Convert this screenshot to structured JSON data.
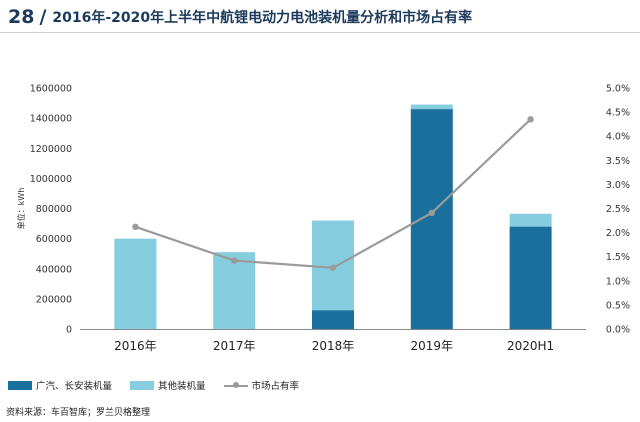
{
  "header": {
    "number": "28",
    "slash": "/",
    "title": "2016年-2020年上半年中航锂电动力电池装机量分析和市场占有率"
  },
  "chart_data": {
    "type": "bar",
    "stacked": true,
    "categories": [
      "2016年",
      "2017年",
      "2018年",
      "2019年",
      "2020H1"
    ],
    "ylabel": "单位：kWh",
    "ylim": [
      0,
      1600000
    ],
    "yticks": [
      "0",
      "200000",
      "400000",
      "600000",
      "800000",
      "1000000",
      "1200000",
      "1400000",
      "1600000"
    ],
    "y2lim": [
      0,
      5
    ],
    "y2ticks": [
      "0.0%",
      "0.5%",
      "1.0%",
      "1.5%",
      "2.0%",
      "2.5%",
      "3.0%",
      "3.5%",
      "4.0%",
      "4.5%",
      "5.0%"
    ],
    "series": [
      {
        "name": "广汽、长安装机量",
        "kind": "bar",
        "color": "#1a6f9c",
        "values": [
          0,
          0,
          125000,
          1460000,
          680000
        ]
      },
      {
        "name": "其他装机量",
        "kind": "bar",
        "color": "#86cde0",
        "values": [
          600000,
          510000,
          595000,
          30000,
          85000
        ]
      },
      {
        "name": "市场占有率",
        "kind": "line",
        "axis": "right",
        "color": "#9a9a9a",
        "values": [
          2.12,
          1.42,
          1.27,
          2.41,
          4.35
        ]
      }
    ],
    "legend_position": "bottom-left",
    "grid": false
  },
  "source": "资料来源：车百智库；罗兰贝格整理"
}
